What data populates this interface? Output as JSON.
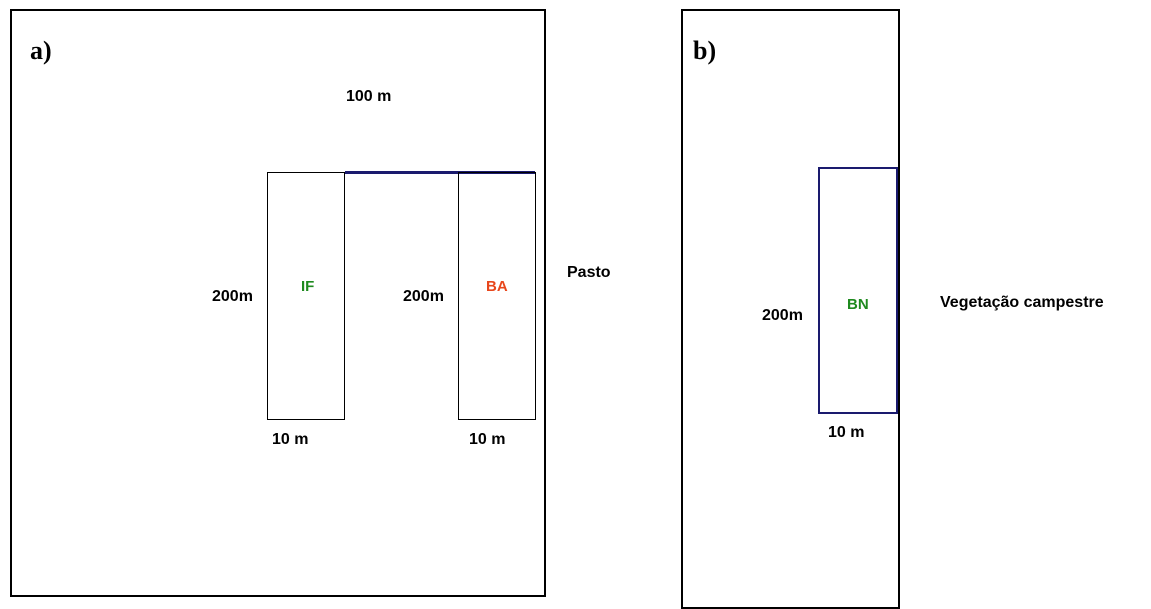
{
  "panel_a": {
    "label": "a)",
    "top_dimension": "100 m",
    "plots": [
      {
        "name": "IF",
        "height_label": "200m",
        "width_label": "10 m",
        "color": "#1f8a1f"
      },
      {
        "name": "BA",
        "height_label": "200m",
        "width_label": "10 m",
        "color": "#e8471c"
      }
    ],
    "outside_label": "Pasto"
  },
  "panel_b": {
    "label": "b)",
    "plot": {
      "name": "BN",
      "height_label": "200m",
      "width_label": "10 m",
      "color": "#1f8a1f"
    },
    "outside_label": "Vegetação campestre"
  },
  "colors": {
    "plot_border_blue": "#1a1a6e"
  }
}
